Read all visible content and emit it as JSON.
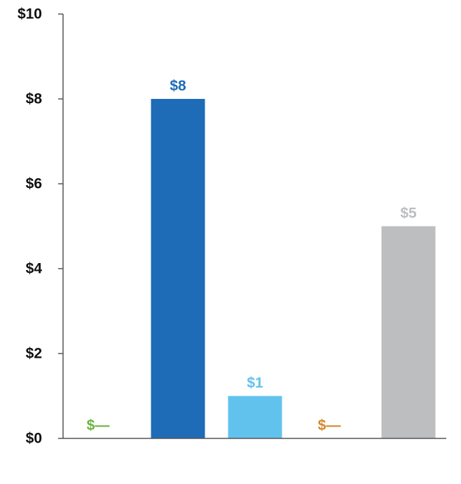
{
  "chart_data": {
    "type": "bar",
    "title": "",
    "xlabel": "",
    "ylabel": "",
    "ylim": [
      0,
      10
    ],
    "yticks": [
      0,
      2,
      4,
      6,
      8,
      10
    ],
    "ytick_labels": [
      "$0",
      "$2",
      "$4",
      "$6",
      "$8",
      "$10"
    ],
    "grid": false,
    "legend": "none",
    "categories": [
      "",
      "",
      "",
      "",
      ""
    ],
    "values": [
      0,
      8,
      1,
      0,
      5
    ],
    "data_labels": [
      "$—",
      "$8",
      "$1",
      "$—",
      "$5"
    ],
    "colors": [
      "#6cb33f",
      "#1e6bb8",
      "#62c2ee",
      "#d4882a",
      "#bcbec0"
    ]
  }
}
